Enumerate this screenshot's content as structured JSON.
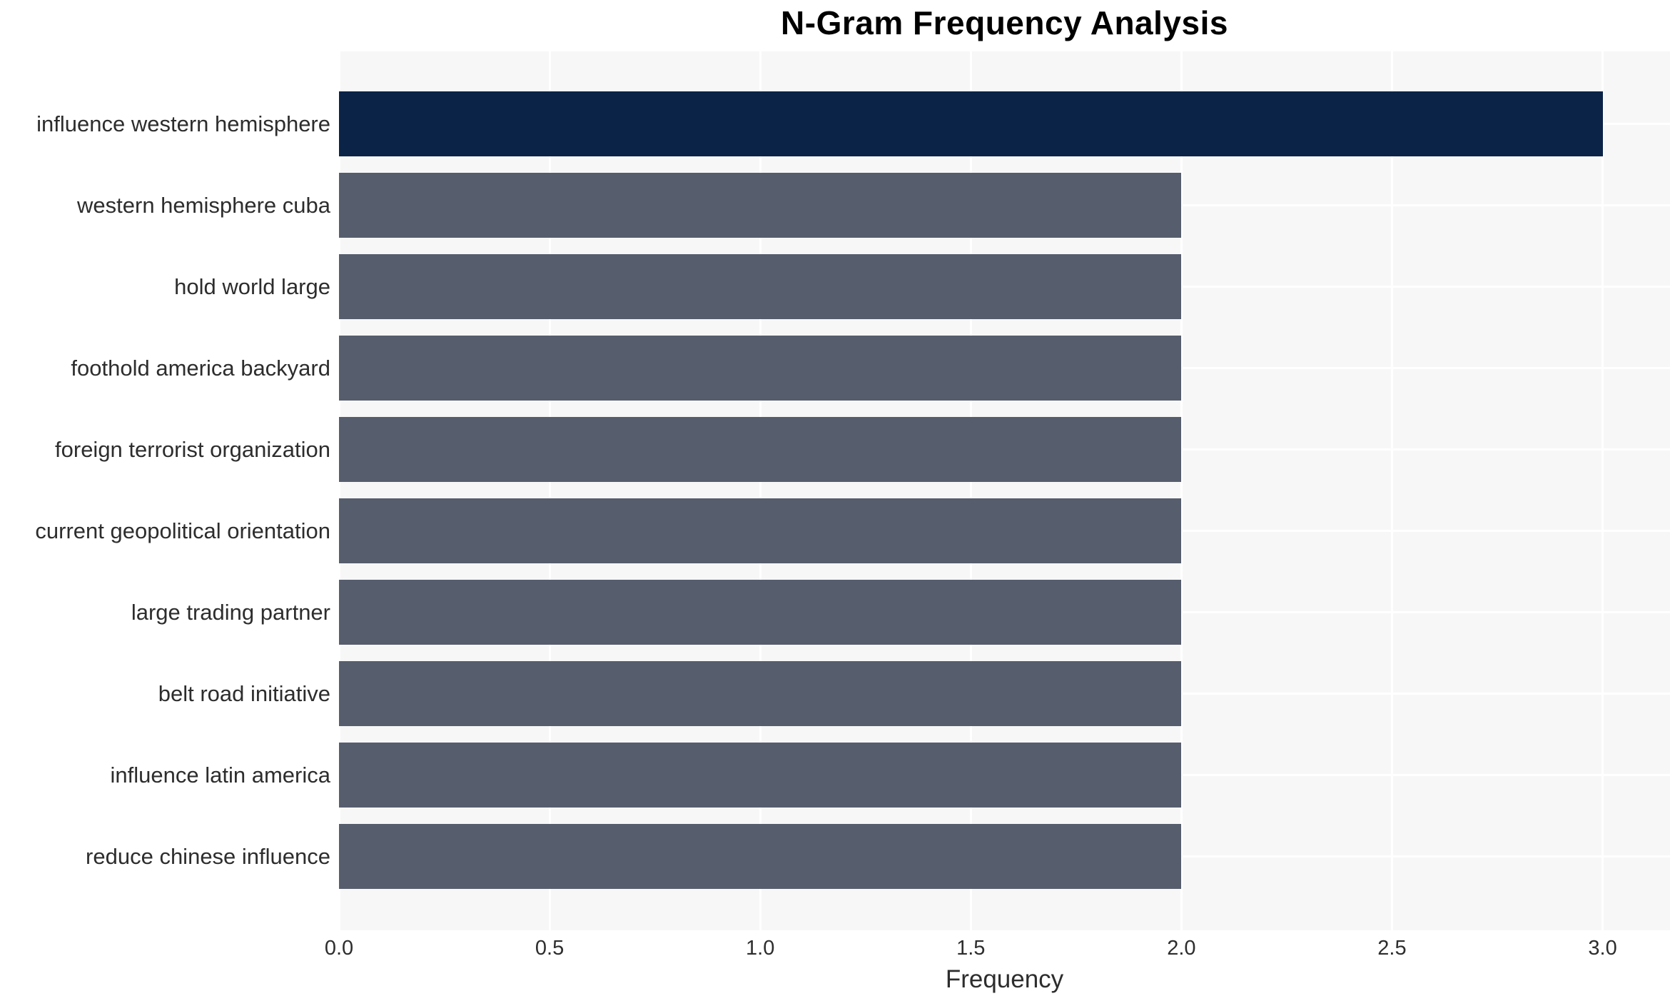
{
  "chart_data": {
    "type": "bar",
    "orientation": "horizontal",
    "title": "N-Gram Frequency Analysis",
    "xlabel": "Frequency",
    "ylabel": "",
    "categories": [
      "influence western hemisphere",
      "western hemisphere cuba",
      "hold world large",
      "foothold america backyard",
      "foreign terrorist organization",
      "current geopolitical orientation",
      "large trading partner",
      "belt road initiative",
      "influence latin america",
      "reduce chinese influence"
    ],
    "values": [
      3,
      2,
      2,
      2,
      2,
      2,
      2,
      2,
      2,
      2
    ],
    "bar_colors": [
      "#0b2347",
      "#565d6d",
      "#565d6d",
      "#565d6d",
      "#565d6d",
      "#565d6d",
      "#565d6d",
      "#565d6d",
      "#565d6d",
      "#565d6d"
    ],
    "xticks": [
      0.0,
      0.5,
      1.0,
      1.5,
      2.0,
      2.5,
      3.0
    ],
    "xtick_labels": [
      "0.0",
      "0.5",
      "1.0",
      "1.5",
      "2.0",
      "2.5",
      "3.0"
    ],
    "xlim": [
      0,
      3.16
    ],
    "grid": true,
    "legend": false,
    "plot_background": "#f7f7f7",
    "grid_color": "#ffffff",
    "figure_background": "#ffffff",
    "text_color": "#2d2d2d",
    "title_color": "#000000"
  }
}
